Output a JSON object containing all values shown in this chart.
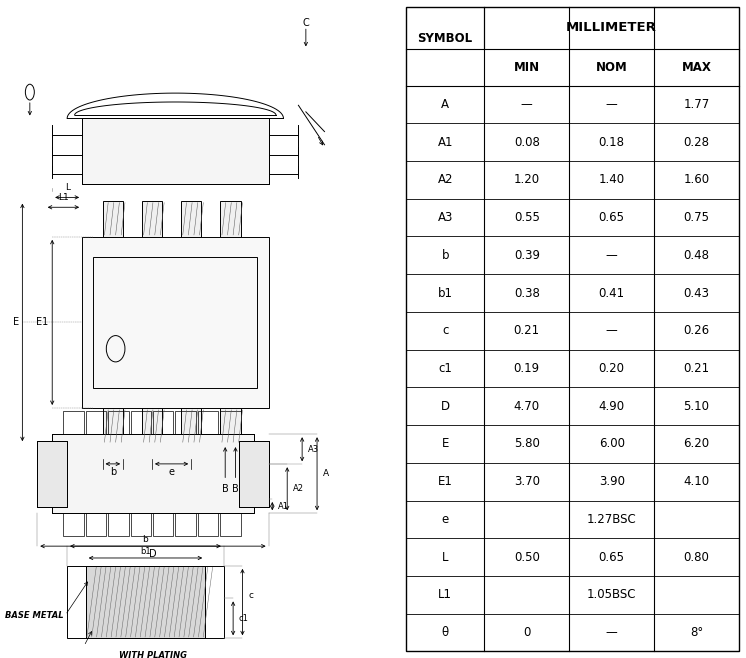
{
  "table_data": [
    [
      "SYMBOL",
      "MIN",
      "NOM",
      "MAX"
    ],
    [
      "A",
      "—",
      "—",
      "1.77"
    ],
    [
      "A1",
      "0.08",
      "0.18",
      "0.28"
    ],
    [
      "A2",
      "1.20",
      "1.40",
      "1.60"
    ],
    [
      "A3",
      "0.55",
      "0.65",
      "0.75"
    ],
    [
      "b",
      "0.39",
      "—",
      "0.48"
    ],
    [
      "b1",
      "0.38",
      "0.41",
      "0.43"
    ],
    [
      "c",
      "0.21",
      "—",
      "0.26"
    ],
    [
      "c1",
      "0.19",
      "0.20",
      "0.21"
    ],
    [
      "D",
      "4.70",
      "4.90",
      "5.10"
    ],
    [
      "E",
      "5.80",
      "6.00",
      "6.20"
    ],
    [
      "E1",
      "3.70",
      "3.90",
      "4.10"
    ],
    [
      "e",
      "1.27BSC",
      "",
      ""
    ],
    [
      "L",
      "0.50",
      "0.65",
      "0.80"
    ],
    [
      "L1",
      "1.05BSC",
      "",
      ""
    ],
    [
      "θ",
      "0",
      "—",
      "8°"
    ]
  ],
  "col_header": "MILLIMETER",
  "bg_color": "#ffffff",
  "line_color": "#000000",
  "font_size": 8.5,
  "header_font_size": 9.5
}
